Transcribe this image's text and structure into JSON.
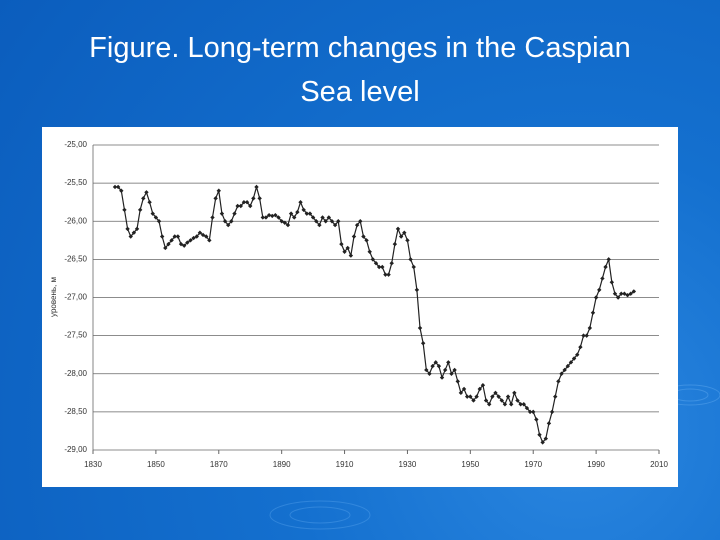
{
  "chart_data": {
    "type": "line",
    "title": "Figure. Long-term changes in the Caspian Sea level",
    "y_label": "уровень, м",
    "x": [
      1837,
      1838,
      1839,
      1840,
      1841,
      1842,
      1843,
      1844,
      1845,
      1846,
      1847,
      1848,
      1849,
      1850,
      1851,
      1852,
      1853,
      1854,
      1855,
      1856,
      1857,
      1858,
      1859,
      1860,
      1861,
      1862,
      1863,
      1864,
      1865,
      1866,
      1867,
      1868,
      1869,
      1870,
      1871,
      1872,
      1873,
      1874,
      1875,
      1876,
      1877,
      1878,
      1879,
      1880,
      1881,
      1882,
      1883,
      1884,
      1885,
      1886,
      1887,
      1888,
      1889,
      1890,
      1891,
      1892,
      1893,
      1894,
      1895,
      1896,
      1897,
      1898,
      1899,
      1900,
      1901,
      1902,
      1903,
      1904,
      1905,
      1906,
      1907,
      1908,
      1909,
      1910,
      1911,
      1912,
      1913,
      1914,
      1915,
      1916,
      1917,
      1918,
      1919,
      1920,
      1921,
      1922,
      1923,
      1924,
      1925,
      1926,
      1927,
      1928,
      1929,
      1930,
      1931,
      1932,
      1933,
      1934,
      1935,
      1936,
      1937,
      1938,
      1939,
      1940,
      1941,
      1942,
      1943,
      1944,
      1945,
      1946,
      1947,
      1948,
      1949,
      1950,
      1951,
      1952,
      1953,
      1954,
      1955,
      1956,
      1957,
      1958,
      1959,
      1960,
      1961,
      1962,
      1963,
      1964,
      1965,
      1966,
      1967,
      1968,
      1969,
      1970,
      1971,
      1972,
      1973,
      1974,
      1975,
      1976,
      1977,
      1978,
      1979,
      1980,
      1981,
      1982,
      1983,
      1984,
      1985,
      1986,
      1987,
      1988,
      1989,
      1990,
      1991,
      1992,
      1993,
      1994,
      1995,
      1996,
      1997,
      1998,
      1999,
      2000,
      2001,
      2002
    ],
    "series": [
      {
        "name": "level",
        "color": "#222222",
        "values": [
          -25.55,
          -25.55,
          -25.6,
          -25.85,
          -26.1,
          -26.2,
          -26.15,
          -26.1,
          -25.85,
          -25.7,
          -25.62,
          -25.75,
          -25.9,
          -25.95,
          -26.0,
          -26.2,
          -26.35,
          -26.3,
          -26.25,
          -26.2,
          -26.2,
          -26.3,
          -26.32,
          -26.28,
          -26.25,
          -26.22,
          -26.2,
          -26.15,
          -26.18,
          -26.2,
          -26.25,
          -25.95,
          -25.7,
          -25.6,
          -25.9,
          -26.0,
          -26.05,
          -26.0,
          -25.9,
          -25.8,
          -25.8,
          -25.75,
          -25.75,
          -25.8,
          -25.7,
          -25.55,
          -25.7,
          -25.95,
          -25.95,
          -25.92,
          -25.93,
          -25.92,
          -25.95,
          -26.0,
          -26.02,
          -26.05,
          -25.9,
          -25.95,
          -25.88,
          -25.75,
          -25.85,
          -25.9,
          -25.9,
          -25.95,
          -26.0,
          -26.05,
          -25.95,
          -26.0,
          -25.95,
          -26.0,
          -26.05,
          -26.0,
          -26.3,
          -26.4,
          -26.35,
          -26.45,
          -26.2,
          -26.05,
          -26.0,
          -26.2,
          -26.25,
          -26.4,
          -26.5,
          -26.55,
          -26.6,
          -26.6,
          -26.7,
          -26.7,
          -26.55,
          -26.3,
          -26.1,
          -26.2,
          -26.15,
          -26.25,
          -26.5,
          -26.6,
          -26.9,
          -27.4,
          -27.6,
          -27.95,
          -28.0,
          -27.9,
          -27.85,
          -27.9,
          -28.05,
          -27.95,
          -27.85,
          -28.0,
          -27.95,
          -28.1,
          -28.25,
          -28.2,
          -28.3,
          -28.3,
          -28.35,
          -28.3,
          -28.2,
          -28.15,
          -28.35,
          -28.4,
          -28.3,
          -28.25,
          -28.3,
          -28.35,
          -28.4,
          -28.3,
          -28.4,
          -28.25,
          -28.35,
          -28.4,
          -28.4,
          -28.45,
          -28.5,
          -28.5,
          -28.6,
          -28.8,
          -28.9,
          -28.85,
          -28.65,
          -28.5,
          -28.3,
          -28.1,
          -28.0,
          -27.95,
          -27.9,
          -27.85,
          -27.8,
          -27.75,
          -27.65,
          -27.5,
          -27.5,
          -27.4,
          -27.2,
          -27.0,
          -26.9,
          -26.75,
          -26.6,
          -26.5,
          -26.8,
          -26.95,
          -27.0,
          -26.95,
          -26.95,
          -26.97,
          -26.95,
          -26.92
        ]
      }
    ],
    "xlim": [
      1830,
      2010
    ],
    "xticks": [
      1830,
      1850,
      1870,
      1890,
      1910,
      1930,
      1950,
      1970,
      1990,
      2010
    ],
    "ylim": [
      -29,
      -25
    ],
    "yticks": [
      {
        "value": -25,
        "label": "-25,00"
      },
      {
        "value": -25.5,
        "label": "-25,50"
      },
      {
        "value": -26,
        "label": "-26,00"
      },
      {
        "value": -26.5,
        "label": "-26,50"
      },
      {
        "value": -27,
        "label": "-27,00"
      },
      {
        "value": -27.5,
        "label": "-27,50"
      },
      {
        "value": -28,
        "label": "-28,00"
      },
      {
        "value": -28.5,
        "label": "-28,50"
      },
      {
        "value": -29,
        "label": "-29,00"
      }
    ],
    "grid": true
  }
}
